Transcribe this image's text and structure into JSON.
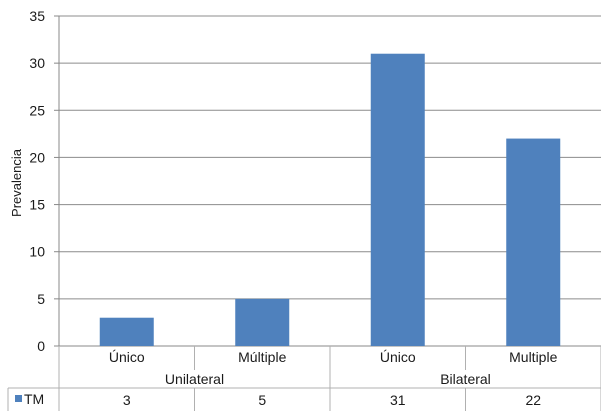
{
  "chart_data": {
    "type": "bar",
    "ylabel": "Prevalencia",
    "ylim": [
      0,
      35
    ],
    "yticks": [
      0,
      5,
      10,
      15,
      20,
      25,
      30,
      35
    ],
    "grid": "horizontal",
    "categories": [
      "Único",
      "Múltiple",
      "Único",
      "Multiple"
    ],
    "groups": [
      {
        "label": "Unilateral",
        "span": [
          0,
          1
        ]
      },
      {
        "label": "Bilateral",
        "span": [
          2,
          3
        ]
      }
    ],
    "series": [
      {
        "name": "TM",
        "values": [
          3,
          5,
          31,
          22
        ],
        "color": "#4f81bd"
      }
    ],
    "data_table": true,
    "legend": "data-table-left"
  }
}
